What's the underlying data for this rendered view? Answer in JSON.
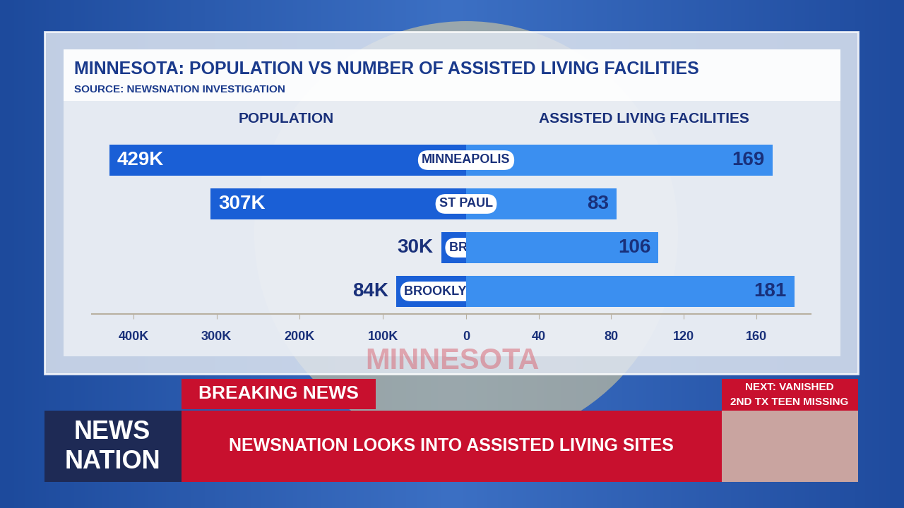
{
  "header": {
    "title": "MINNESOTA: POPULATION VS NUMBER OF ASSISTED LIVING FACILITIES",
    "source": "SOURCE: NEWSNATION INVESTIGATION"
  },
  "chart_data": [
    {
      "type": "bar",
      "orientation": "horizontal",
      "title": "POPULATION",
      "categories": [
        "MINNEAPOLIS",
        "ST PAUL",
        "BROOKLYN CENTER",
        "BROOKLYN PARK"
      ],
      "values": [
        429000,
        307000,
        30000,
        84000
      ],
      "value_labels": [
        "429K",
        "307K",
        "30K",
        "84K"
      ],
      "data_labels": true,
      "color": "#1a5fd6",
      "xlim": [
        0,
        450000
      ],
      "xticks": [
        {
          "value": 400000,
          "label": "400K"
        },
        {
          "value": 300000,
          "label": "300K"
        },
        {
          "value": 200000,
          "label": "200K"
        },
        {
          "value": 100000,
          "label": "100K"
        }
      ]
    },
    {
      "type": "bar",
      "orientation": "horizontal",
      "title": "ASSISTED LIVING FACILITIES",
      "categories": [
        "MINNEAPOLIS",
        "ST PAUL",
        "BROOKLYN CENTER",
        "BROOKLYN PARK"
      ],
      "values": [
        169,
        83,
        106,
        181
      ],
      "data_labels": true,
      "color": "#3b8ff0",
      "xlim": [
        0,
        190
      ],
      "xticks": [
        0,
        40,
        80,
        120,
        160
      ]
    }
  ],
  "background": {
    "flag_text": "MINNESOTA"
  },
  "banner": {
    "label": "BREAKING NEWS",
    "headline": "NEWSNATION LOOKS INTO ASSISTED LIVING SITES",
    "logo": [
      "NEWS",
      "NATION"
    ],
    "next": [
      "NEXT: VANISHED",
      "2ND TX TEEN MISSING"
    ]
  }
}
